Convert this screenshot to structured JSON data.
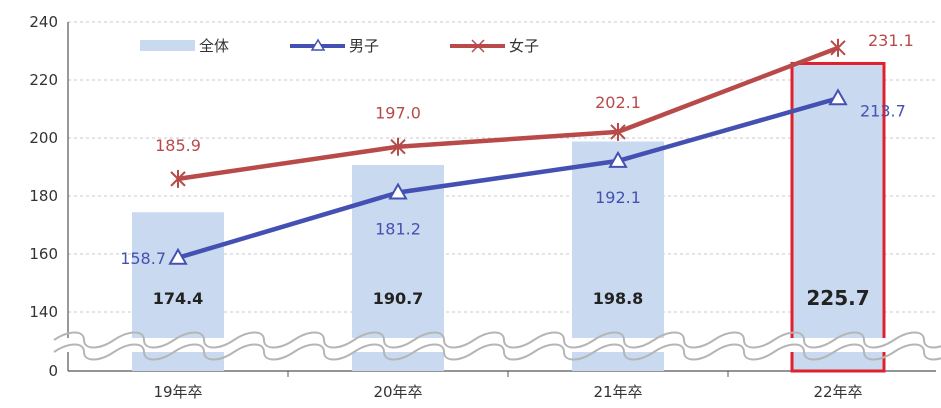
{
  "chart_data": {
    "type": "bar",
    "categories": [
      "19年卒",
      "20年卒",
      "21年卒",
      "22年卒"
    ],
    "y_ticks": [
      "0",
      "140",
      "160",
      "180",
      "200",
      "220",
      "240"
    ],
    "axis_break": {
      "from": 0,
      "to": 130
    },
    "ylim": [
      130,
      240
    ],
    "series": [
      {
        "name": "全体",
        "kind": "bar",
        "values": [
          174.4,
          190.7,
          198.8,
          225.7
        ],
        "labels": [
          "174.4",
          "190.7",
          "198.8",
          "225.7"
        ]
      },
      {
        "name": "男子",
        "kind": "line",
        "marker": "triangle",
        "values": [
          158.7,
          181.2,
          192.1,
          213.7
        ],
        "labels": [
          "158.7",
          "181.2",
          "192.1",
          "213.7"
        ]
      },
      {
        "name": "女子",
        "kind": "line",
        "marker": "star",
        "values": [
          185.9,
          197.0,
          202.1,
          231.1
        ],
        "labels": [
          "185.9",
          "197.0",
          "202.1",
          "231.1"
        ]
      }
    ],
    "highlight_category": "22年卒",
    "grid": true,
    "legend_position": "top-left",
    "colors": {
      "bar": "#c9daf0",
      "male": "#4451b3",
      "female": "#b84a4a",
      "highlight": "#e0202a",
      "grid": "#c8c8c8",
      "axis": "#555555"
    }
  }
}
